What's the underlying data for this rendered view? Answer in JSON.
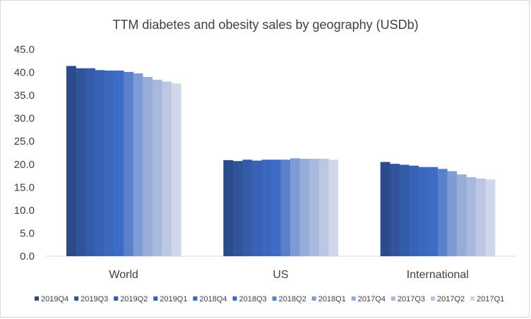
{
  "chart_data": {
    "type": "bar",
    "title": "TTM diabetes and obesity sales by geography (USDb)",
    "xlabel": "",
    "ylabel": "",
    "ylim": [
      0,
      45
    ],
    "yticks": [
      "0.0",
      "5.0",
      "10.0",
      "15.0",
      "20.0",
      "25.0",
      "30.0",
      "35.0",
      "40.0",
      "45.0"
    ],
    "grid": false,
    "legend_position": "bottom",
    "categories": [
      "World",
      "US",
      "International"
    ],
    "series": [
      {
        "name": "2019Q4",
        "color": "#2b4b8a",
        "values": [
          41.4,
          20.9,
          20.5
        ]
      },
      {
        "name": "2019Q3",
        "color": "#30539a",
        "values": [
          40.9,
          20.7,
          20.1
        ]
      },
      {
        "name": "2019Q2",
        "color": "#345ba8",
        "values": [
          40.9,
          21.0,
          19.9
        ]
      },
      {
        "name": "2019Q1",
        "color": "#3862b5",
        "values": [
          40.5,
          20.8,
          19.7
        ]
      },
      {
        "name": "2018Q4",
        "color": "#3b67bf",
        "values": [
          40.4,
          21.0,
          19.4
        ]
      },
      {
        "name": "2018Q3",
        "color": "#3e6bc6",
        "values": [
          40.4,
          21.0,
          19.4
        ]
      },
      {
        "name": "2018Q2",
        "color": "#5a80cc",
        "values": [
          40.1,
          21.0,
          19.0
        ]
      },
      {
        "name": "2018Q1",
        "color": "#7e9bd5",
        "values": [
          39.8,
          21.3,
          18.5
        ]
      },
      {
        "name": "2017Q4",
        "color": "#98acd8",
        "values": [
          39.0,
          21.2,
          17.8
        ]
      },
      {
        "name": "2017Q3",
        "color": "#a9b8dd",
        "values": [
          38.4,
          21.2,
          17.2
        ]
      },
      {
        "name": "2017Q2",
        "color": "#bcc7e4",
        "values": [
          38.0,
          21.2,
          16.9
        ]
      },
      {
        "name": "2017Q1",
        "color": "#d0d7ea",
        "values": [
          37.6,
          21.0,
          16.7
        ]
      }
    ]
  }
}
